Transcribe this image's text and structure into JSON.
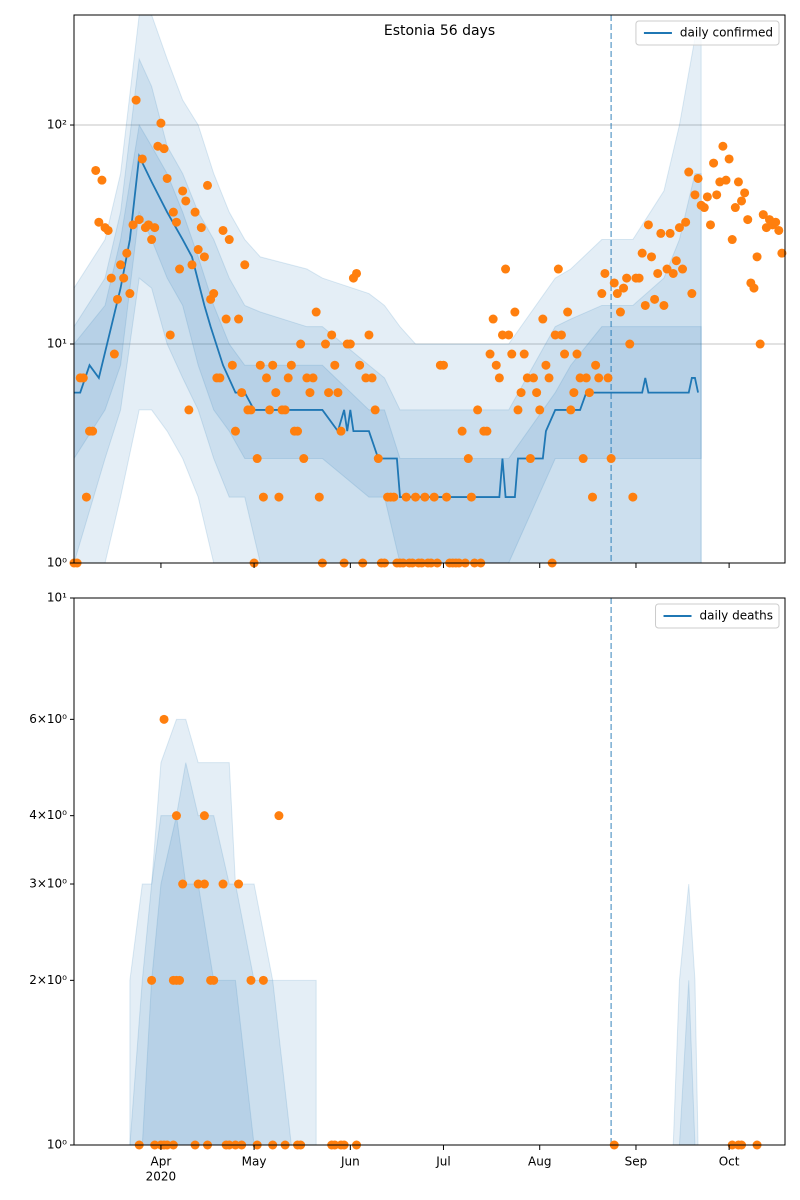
{
  "chart_data": [
    {
      "type": "line",
      "title": "Estonia 56 days",
      "yscale": "log",
      "grid": true,
      "legend": "upper right",
      "xlim": [
        0,
        229
      ],
      "xticks": [
        28,
        58,
        89,
        119,
        150,
        181,
        211
      ],
      "ylim": [
        1,
        318
      ],
      "yticks": [
        {
          "value": 1,
          "label": "10⁰"
        },
        {
          "value": 10,
          "label": "10¹"
        },
        {
          "value": 100,
          "label": "10²"
        }
      ],
      "vline_x": 173,
      "series": [
        {
          "name": "daily confirmed",
          "color": "#1f77b4",
          "x": [
            0,
            2,
            5,
            8,
            12,
            15,
            18,
            21,
            25,
            30,
            35,
            38,
            42,
            44,
            48,
            52,
            55,
            58,
            62,
            65,
            70,
            80,
            85,
            87,
            88,
            89,
            90,
            95,
            98,
            100,
            104,
            105,
            137,
            138,
            139,
            142,
            143,
            151,
            152,
            155,
            163,
            165,
            183,
            184,
            185,
            186,
            198,
            199,
            200,
            201
          ],
          "values": [
            6,
            6,
            8,
            7,
            12,
            18,
            30,
            72,
            55,
            40,
            30,
            25,
            15,
            12,
            8,
            6,
            6,
            5,
            5,
            5,
            5,
            5,
            4,
            5,
            4,
            5,
            4,
            4,
            3,
            3,
            3,
            2,
            2,
            3,
            2,
            2,
            3,
            3,
            4,
            5,
            5,
            6,
            6,
            7,
            6,
            6,
            6,
            7,
            7,
            6
          ]
        }
      ],
      "scatter": {
        "color": "#ff7f0e",
        "x": [
          0,
          1,
          2,
          3,
          4,
          5,
          6,
          7,
          8,
          9,
          10,
          11,
          12,
          13,
          14,
          15,
          16,
          17,
          18,
          19,
          20,
          21,
          22,
          23,
          24,
          25,
          26,
          27,
          28,
          29,
          30,
          31,
          32,
          33,
          34,
          35,
          36,
          37,
          38,
          39,
          40,
          41,
          42,
          43,
          44,
          45,
          46,
          47,
          48,
          49,
          50,
          51,
          52,
          53,
          54,
          55,
          56,
          57,
          58,
          59,
          60,
          61,
          62,
          63,
          64,
          65,
          66,
          67,
          68,
          69,
          70,
          71,
          72,
          73,
          74,
          75,
          76,
          77,
          78,
          79,
          80,
          81,
          82,
          83,
          84,
          85,
          86,
          87,
          88,
          89,
          90,
          91,
          92,
          93,
          94,
          95,
          96,
          97,
          98,
          99,
          100,
          101,
          102,
          103,
          104,
          105,
          106,
          107,
          108,
          109,
          110,
          111,
          112,
          113,
          114,
          115,
          116,
          117,
          118,
          119,
          120,
          121,
          122,
          123,
          124,
          125,
          126,
          127,
          128,
          129,
          130,
          131,
          132,
          133,
          134,
          135,
          136,
          137,
          138,
          139,
          140,
          141,
          142,
          143,
          144,
          145,
          146,
          147,
          148,
          149,
          150,
          151,
          152,
          153,
          154,
          155,
          156,
          157,
          158,
          159,
          160,
          161,
          162,
          163,
          164,
          165,
          166,
          167,
          168,
          169,
          170,
          171,
          172,
          173,
          174,
          175,
          176,
          177,
          178,
          179,
          180,
          181,
          182,
          183,
          184,
          185,
          186,
          187,
          188,
          189,
          190,
          191,
          192,
          193,
          194,
          195,
          196,
          197,
          198,
          199,
          200,
          201,
          202,
          203,
          204,
          205,
          206,
          207,
          208,
          209,
          210,
          211,
          212,
          213,
          214,
          215,
          216,
          217,
          218,
          219,
          220,
          221,
          222,
          223,
          224,
          225,
          226,
          227,
          228
        ],
        "values": [
          1,
          1,
          7,
          7,
          2,
          4,
          4,
          62,
          36,
          56,
          34,
          33,
          20,
          9,
          16,
          23,
          20,
          26,
          17,
          35,
          130,
          37,
          70,
          34,
          35,
          30,
          34,
          80,
          102,
          78,
          57,
          11,
          40,
          36,
          22,
          50,
          45,
          5,
          23,
          40,
          27,
          34,
          25,
          53,
          16,
          17,
          7,
          7,
          33,
          13,
          30,
          8,
          4,
          13,
          6,
          23,
          5,
          5,
          1,
          3,
          8,
          2,
          7,
          5,
          8,
          6,
          2,
          5,
          5,
          7,
          8,
          4,
          4,
          10,
          3,
          7,
          6,
          7,
          14,
          2,
          1,
          10,
          6,
          11,
          8,
          6,
          4,
          1,
          10,
          10,
          20,
          21,
          8,
          1,
          7,
          11,
          7,
          5,
          3,
          1,
          1,
          2,
          2,
          2,
          1,
          1,
          1,
          2,
          1,
          1,
          2,
          1,
          1,
          2,
          1,
          1,
          2,
          1,
          8,
          8,
          2,
          1,
          1,
          1,
          1,
          4,
          1,
          3,
          2,
          1,
          5,
          1,
          4,
          4,
          9,
          13,
          8,
          7,
          11,
          22,
          11,
          9,
          14,
          5,
          6,
          9,
          7,
          3,
          7,
          6,
          5,
          13,
          8,
          7,
          1,
          11,
          22,
          11,
          9,
          14,
          5,
          6,
          9,
          7,
          3,
          7,
          6,
          2,
          8,
          7,
          17,
          21,
          7,
          3,
          19,
          17,
          14,
          18,
          20,
          10,
          2,
          20,
          20,
          26,
          15,
          35,
          25,
          16,
          21,
          32,
          15,
          22,
          32,
          21,
          24,
          34,
          22,
          36,
          61,
          17,
          48,
          57,
          43,
          42,
          47,
          35,
          67,
          48,
          55,
          80,
          56,
          70,
          30,
          42,
          55,
          45,
          49,
          37,
          19,
          18,
          25,
          10,
          39,
          34,
          37,
          35,
          36,
          33,
          26
        ]
      },
      "band_color": "#1f77b4",
      "band_x": [
        0,
        10,
        15,
        21,
        25,
        30,
        35,
        40,
        45,
        50,
        55,
        60,
        75,
        80,
        95,
        100,
        105,
        110,
        120,
        135,
        140,
        155,
        160,
        170,
        180,
        190,
        195,
        200,
        202
      ],
      "bands": [
        {
          "lower": [
            1,
            1,
            2,
            5,
            5,
            4,
            3,
            2,
            1,
            1,
            1,
            1,
            1,
            1,
            1,
            1,
            1,
            1,
            1,
            1,
            1,
            1,
            1,
            1,
            1,
            1,
            1,
            1,
            1
          ],
          "upper": [
            18,
            30,
            60,
            318,
            318,
            200,
            130,
            100,
            60,
            40,
            30,
            25,
            22,
            20,
            17,
            15,
            12,
            10,
            10,
            10,
            10,
            20,
            22,
            30,
            30,
            50,
            100,
            250,
            250
          ]
        },
        {
          "lower": [
            1,
            3,
            5,
            20,
            18,
            10,
            7,
            5,
            3,
            2,
            2,
            1,
            1,
            1,
            1,
            1,
            1,
            1,
            1,
            1,
            1,
            1,
            1,
            1,
            1,
            1,
            1,
            1,
            1
          ],
          "upper": [
            12,
            20,
            40,
            200,
            150,
            80,
            60,
            40,
            30,
            20,
            15,
            14,
            12,
            12,
            8,
            7,
            5,
            5,
            5,
            5,
            5,
            12,
            13,
            15,
            15,
            20,
            30,
            60,
            60
          ]
        },
        {
          "lower": [
            3,
            5,
            8,
            40,
            30,
            20,
            15,
            8,
            5,
            4,
            3,
            3,
            3,
            3,
            2,
            2,
            1,
            1,
            1,
            1,
            1,
            3,
            3,
            3,
            3,
            3,
            3,
            3,
            3
          ],
          "upper": [
            10,
            15,
            30,
            100,
            80,
            60,
            40,
            25,
            15,
            10,
            8,
            8,
            8,
            8,
            5,
            5,
            3,
            3,
            3,
            3,
            3,
            6,
            8,
            12,
            12,
            12,
            12,
            12,
            12
          ]
        }
      ]
    },
    {
      "type": "line",
      "yscale": "log",
      "grid": false,
      "legend": "upper right",
      "xlim": [
        0,
        229
      ],
      "xticks": [
        {
          "value": 28,
          "label": "Apr"
        },
        {
          "value": 58,
          "label": "May"
        },
        {
          "value": 89,
          "label": "Jun"
        },
        {
          "value": 119,
          "label": "Jul"
        },
        {
          "value": 150,
          "label": "Aug"
        },
        {
          "value": 181,
          "label": "Sep"
        },
        {
          "value": 211,
          "label": "Oct"
        }
      ],
      "x_year_label": "2020",
      "ylim": [
        1,
        10
      ],
      "yticks": [
        {
          "value": 1,
          "label": "10⁰"
        },
        {
          "value": 2,
          "label": "2×10⁰"
        },
        {
          "value": 3,
          "label": "3×10⁰"
        },
        {
          "value": 4,
          "label": "4×10⁰"
        },
        {
          "value": 6,
          "label": "6×10⁰"
        },
        {
          "value": 10,
          "label": "10¹"
        }
      ],
      "vline_x": 173,
      "series": [
        {
          "name": "daily deaths",
          "color": "#1f77b4"
        }
      ],
      "scatter": {
        "color": "#ff7f0e",
        "x": [
          21,
          25,
          26,
          28,
          29,
          29,
          30,
          32,
          32,
          33,
          33,
          34,
          35,
          39,
          40,
          42,
          42,
          43,
          44,
          45,
          48,
          49,
          50,
          52,
          53,
          54,
          57,
          59,
          61,
          64,
          66,
          68,
          72,
          73,
          83,
          84,
          86,
          87,
          91,
          174,
          212,
          214,
          215,
          220
        ],
        "values": [
          1,
          2,
          1,
          1,
          1,
          6,
          1,
          1,
          2,
          2,
          4,
          2,
          3,
          1,
          3,
          3,
          4,
          1,
          2,
          2,
          3,
          1,
          1,
          1,
          3,
          1,
          2,
          1,
          2,
          1,
          4,
          1,
          1,
          1,
          1,
          1,
          1,
          1,
          1,
          1,
          1,
          1,
          1,
          1
        ]
      },
      "band_color": "#1f77b4",
      "band_x": [
        18,
        22,
        25,
        28,
        33,
        36,
        40,
        45,
        50,
        52,
        58,
        64,
        70,
        78,
        79,
        193,
        195,
        198,
        200,
        201
      ],
      "bands": [
        {
          "lower": [
            1,
            1,
            1,
            1,
            1,
            1,
            1,
            1,
            1,
            1,
            1,
            1,
            1,
            1,
            null,
            1,
            1,
            1,
            1,
            1
          ],
          "upper": [
            2,
            3,
            3,
            5,
            6,
            6,
            5,
            5,
            5,
            3,
            3,
            2,
            2,
            2,
            null,
            1,
            2,
            3,
            2,
            1
          ]
        },
        {
          "lower": [
            1,
            1,
            1,
            1,
            1,
            1,
            1,
            1,
            1,
            1,
            1,
            1,
            1,
            1,
            null,
            1,
            1,
            1,
            1,
            1
          ],
          "upper": [
            1,
            2,
            3,
            4,
            4,
            5,
            4,
            4,
            3,
            3,
            2,
            2,
            1,
            1,
            null,
            1,
            1,
            2,
            1,
            1
          ]
        },
        {
          "lower": [
            1,
            1,
            1,
            1,
            1,
            1,
            1,
            1,
            1,
            1,
            1,
            1,
            1,
            1,
            null,
            1,
            1,
            1,
            1,
            1
          ],
          "upper": [
            1,
            1,
            2,
            3,
            4,
            3,
            3,
            2,
            2,
            2,
            1,
            1,
            1,
            1,
            null,
            1,
            1,
            1,
            1,
            1
          ]
        }
      ]
    }
  ]
}
